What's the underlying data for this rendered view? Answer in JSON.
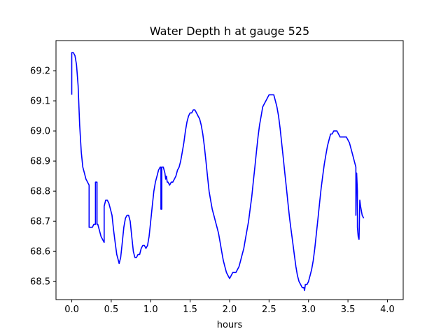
{
  "chart_data": {
    "type": "line",
    "title": "Water Depth h at gauge 525",
    "xlabel": "hours",
    "ylabel": "",
    "xlim": [
      -0.2,
      4.2
    ],
    "ylim": [
      68.44,
      69.3
    ],
    "grid": false,
    "legend": "none",
    "line_color": "#0000ff",
    "x_ticks": [
      0.0,
      0.5,
      1.0,
      1.5,
      2.0,
      2.5,
      3.0,
      3.5,
      4.0
    ],
    "x_tick_labels": [
      "0.0",
      "0.5",
      "1.0",
      "1.5",
      "2.0",
      "2.5",
      "3.0",
      "3.5",
      "4.0"
    ],
    "y_ticks": [
      68.5,
      68.6,
      68.7,
      68.8,
      68.9,
      69.0,
      69.1,
      69.2
    ],
    "y_tick_labels": [
      "68.5",
      "68.6",
      "68.7",
      "68.8",
      "68.9",
      "69.0",
      "69.1",
      "69.2"
    ],
    "series": [
      {
        "points": [
          [
            0.0,
            69.12
          ],
          [
            0.0,
            69.26
          ],
          [
            0.02,
            69.26
          ],
          [
            0.04,
            69.25
          ],
          [
            0.06,
            69.22
          ],
          [
            0.08,
            69.15
          ],
          [
            0.1,
            69.02
          ],
          [
            0.12,
            68.93
          ],
          [
            0.14,
            68.88
          ],
          [
            0.16,
            68.86
          ],
          [
            0.18,
            68.84
          ],
          [
            0.2,
            68.83
          ],
          [
            0.22,
            68.82
          ],
          [
            0.22,
            68.68
          ],
          [
            0.24,
            68.68
          ],
          [
            0.26,
            68.68
          ],
          [
            0.28,
            68.69
          ],
          [
            0.3,
            68.69
          ],
          [
            0.3,
            68.83
          ],
          [
            0.31,
            68.83
          ],
          [
            0.32,
            68.83
          ],
          [
            0.32,
            68.69
          ],
          [
            0.33,
            68.69
          ],
          [
            0.35,
            68.67
          ],
          [
            0.37,
            68.65
          ],
          [
            0.39,
            68.64
          ],
          [
            0.41,
            68.63
          ],
          [
            0.41,
            68.75
          ],
          [
            0.42,
            68.76
          ],
          [
            0.43,
            68.77
          ],
          [
            0.45,
            68.77
          ],
          [
            0.47,
            68.76
          ],
          [
            0.49,
            68.74
          ],
          [
            0.51,
            68.72
          ],
          [
            0.53,
            68.67
          ],
          [
            0.55,
            68.63
          ],
          [
            0.57,
            68.59
          ],
          [
            0.59,
            68.57
          ],
          [
            0.6,
            68.56
          ],
          [
            0.62,
            68.58
          ],
          [
            0.64,
            68.63
          ],
          [
            0.66,
            68.68
          ],
          [
            0.68,
            68.71
          ],
          [
            0.7,
            68.72
          ],
          [
            0.72,
            68.72
          ],
          [
            0.74,
            68.7
          ],
          [
            0.76,
            68.65
          ],
          [
            0.78,
            68.6
          ],
          [
            0.8,
            68.58
          ],
          [
            0.82,
            68.58
          ],
          [
            0.84,
            68.59
          ],
          [
            0.86,
            68.59
          ],
          [
            0.88,
            68.61
          ],
          [
            0.9,
            68.62
          ],
          [
            0.92,
            68.62
          ],
          [
            0.94,
            68.61
          ],
          [
            0.96,
            68.62
          ],
          [
            0.98,
            68.65
          ],
          [
            1.0,
            68.7
          ],
          [
            1.02,
            68.75
          ],
          [
            1.04,
            68.8
          ],
          [
            1.06,
            68.83
          ],
          [
            1.08,
            68.85
          ],
          [
            1.1,
            68.87
          ],
          [
            1.12,
            68.88
          ],
          [
            1.13,
            68.88
          ],
          [
            1.13,
            68.74
          ],
          [
            1.14,
            68.74
          ],
          [
            1.14,
            68.88
          ],
          [
            1.16,
            68.88
          ],
          [
            1.18,
            68.86
          ],
          [
            1.19,
            68.84
          ],
          [
            1.2,
            68.85
          ],
          [
            1.21,
            68.83
          ],
          [
            1.22,
            68.83
          ],
          [
            1.24,
            68.82
          ],
          [
            1.26,
            68.83
          ],
          [
            1.28,
            68.83
          ],
          [
            1.3,
            68.84
          ],
          [
            1.32,
            68.85
          ],
          [
            1.34,
            68.87
          ],
          [
            1.36,
            68.88
          ],
          [
            1.38,
            68.9
          ],
          [
            1.4,
            68.93
          ],
          [
            1.42,
            68.96
          ],
          [
            1.44,
            69.0
          ],
          [
            1.46,
            69.03
          ],
          [
            1.48,
            69.05
          ],
          [
            1.5,
            69.06
          ],
          [
            1.52,
            69.06
          ],
          [
            1.54,
            69.07
          ],
          [
            1.56,
            69.07
          ],
          [
            1.58,
            69.06
          ],
          [
            1.6,
            69.05
          ],
          [
            1.62,
            69.04
          ],
          [
            1.64,
            69.02
          ],
          [
            1.66,
            68.99
          ],
          [
            1.68,
            68.95
          ],
          [
            1.7,
            68.9
          ],
          [
            1.72,
            68.85
          ],
          [
            1.74,
            68.8
          ],
          [
            1.76,
            68.77
          ],
          [
            1.78,
            68.74
          ],
          [
            1.8,
            68.72
          ],
          [
            1.82,
            68.7
          ],
          [
            1.84,
            68.68
          ],
          [
            1.86,
            68.66
          ],
          [
            1.88,
            68.63
          ],
          [
            1.9,
            68.6
          ],
          [
            1.92,
            68.57
          ],
          [
            1.94,
            68.55
          ],
          [
            1.96,
            68.53
          ],
          [
            1.98,
            68.52
          ],
          [
            2.0,
            68.51
          ],
          [
            2.02,
            68.52
          ],
          [
            2.04,
            68.53
          ],
          [
            2.06,
            68.53
          ],
          [
            2.08,
            68.53
          ],
          [
            2.1,
            68.54
          ],
          [
            2.12,
            68.55
          ],
          [
            2.14,
            68.57
          ],
          [
            2.16,
            68.59
          ],
          [
            2.18,
            68.61
          ],
          [
            2.2,
            68.64
          ],
          [
            2.22,
            68.67
          ],
          [
            2.24,
            68.7
          ],
          [
            2.26,
            68.74
          ],
          [
            2.28,
            68.78
          ],
          [
            2.3,
            68.83
          ],
          [
            2.32,
            68.88
          ],
          [
            2.34,
            68.93
          ],
          [
            2.36,
            68.98
          ],
          [
            2.38,
            69.02
          ],
          [
            2.4,
            69.05
          ],
          [
            2.42,
            69.08
          ],
          [
            2.44,
            69.09
          ],
          [
            2.46,
            69.1
          ],
          [
            2.48,
            69.11
          ],
          [
            2.5,
            69.12
          ],
          [
            2.52,
            69.12
          ],
          [
            2.54,
            69.12
          ],
          [
            2.56,
            69.12
          ],
          [
            2.58,
            69.1
          ],
          [
            2.6,
            69.08
          ],
          [
            2.62,
            69.05
          ],
          [
            2.64,
            69.01
          ],
          [
            2.66,
            68.96
          ],
          [
            2.68,
            68.91
          ],
          [
            2.7,
            68.86
          ],
          [
            2.72,
            68.81
          ],
          [
            2.74,
            68.76
          ],
          [
            2.76,
            68.71
          ],
          [
            2.78,
            68.67
          ],
          [
            2.8,
            68.63
          ],
          [
            2.82,
            68.59
          ],
          [
            2.84,
            68.55
          ],
          [
            2.86,
            68.52
          ],
          [
            2.88,
            68.5
          ],
          [
            2.9,
            68.49
          ],
          [
            2.92,
            68.48
          ],
          [
            2.94,
            68.48
          ],
          [
            2.95,
            68.47
          ],
          [
            2.96,
            68.49
          ],
          [
            2.98,
            68.49
          ],
          [
            3.0,
            68.5
          ],
          [
            3.02,
            68.52
          ],
          [
            3.04,
            68.54
          ],
          [
            3.06,
            68.57
          ],
          [
            3.08,
            68.61
          ],
          [
            3.1,
            68.66
          ],
          [
            3.12,
            68.71
          ],
          [
            3.14,
            68.76
          ],
          [
            3.16,
            68.81
          ],
          [
            3.18,
            68.85
          ],
          [
            3.2,
            68.89
          ],
          [
            3.22,
            68.92
          ],
          [
            3.24,
            68.95
          ],
          [
            3.26,
            68.97
          ],
          [
            3.28,
            68.99
          ],
          [
            3.3,
            68.99
          ],
          [
            3.32,
            69.0
          ],
          [
            3.34,
            69.0
          ],
          [
            3.36,
            69.0
          ],
          [
            3.38,
            68.99
          ],
          [
            3.4,
            68.98
          ],
          [
            3.42,
            68.98
          ],
          [
            3.44,
            68.98
          ],
          [
            3.46,
            68.98
          ],
          [
            3.48,
            68.98
          ],
          [
            3.5,
            68.97
          ],
          [
            3.52,
            68.96
          ],
          [
            3.54,
            68.94
          ],
          [
            3.56,
            68.92
          ],
          [
            3.58,
            68.9
          ],
          [
            3.6,
            68.88
          ],
          [
            3.6,
            68.72
          ],
          [
            3.61,
            68.86
          ],
          [
            3.62,
            68.8
          ],
          [
            3.62,
            68.68
          ],
          [
            3.63,
            68.65
          ],
          [
            3.64,
            68.64
          ],
          [
            3.65,
            68.77
          ],
          [
            3.66,
            68.75
          ],
          [
            3.68,
            68.72
          ],
          [
            3.7,
            68.71
          ]
        ]
      }
    ]
  }
}
